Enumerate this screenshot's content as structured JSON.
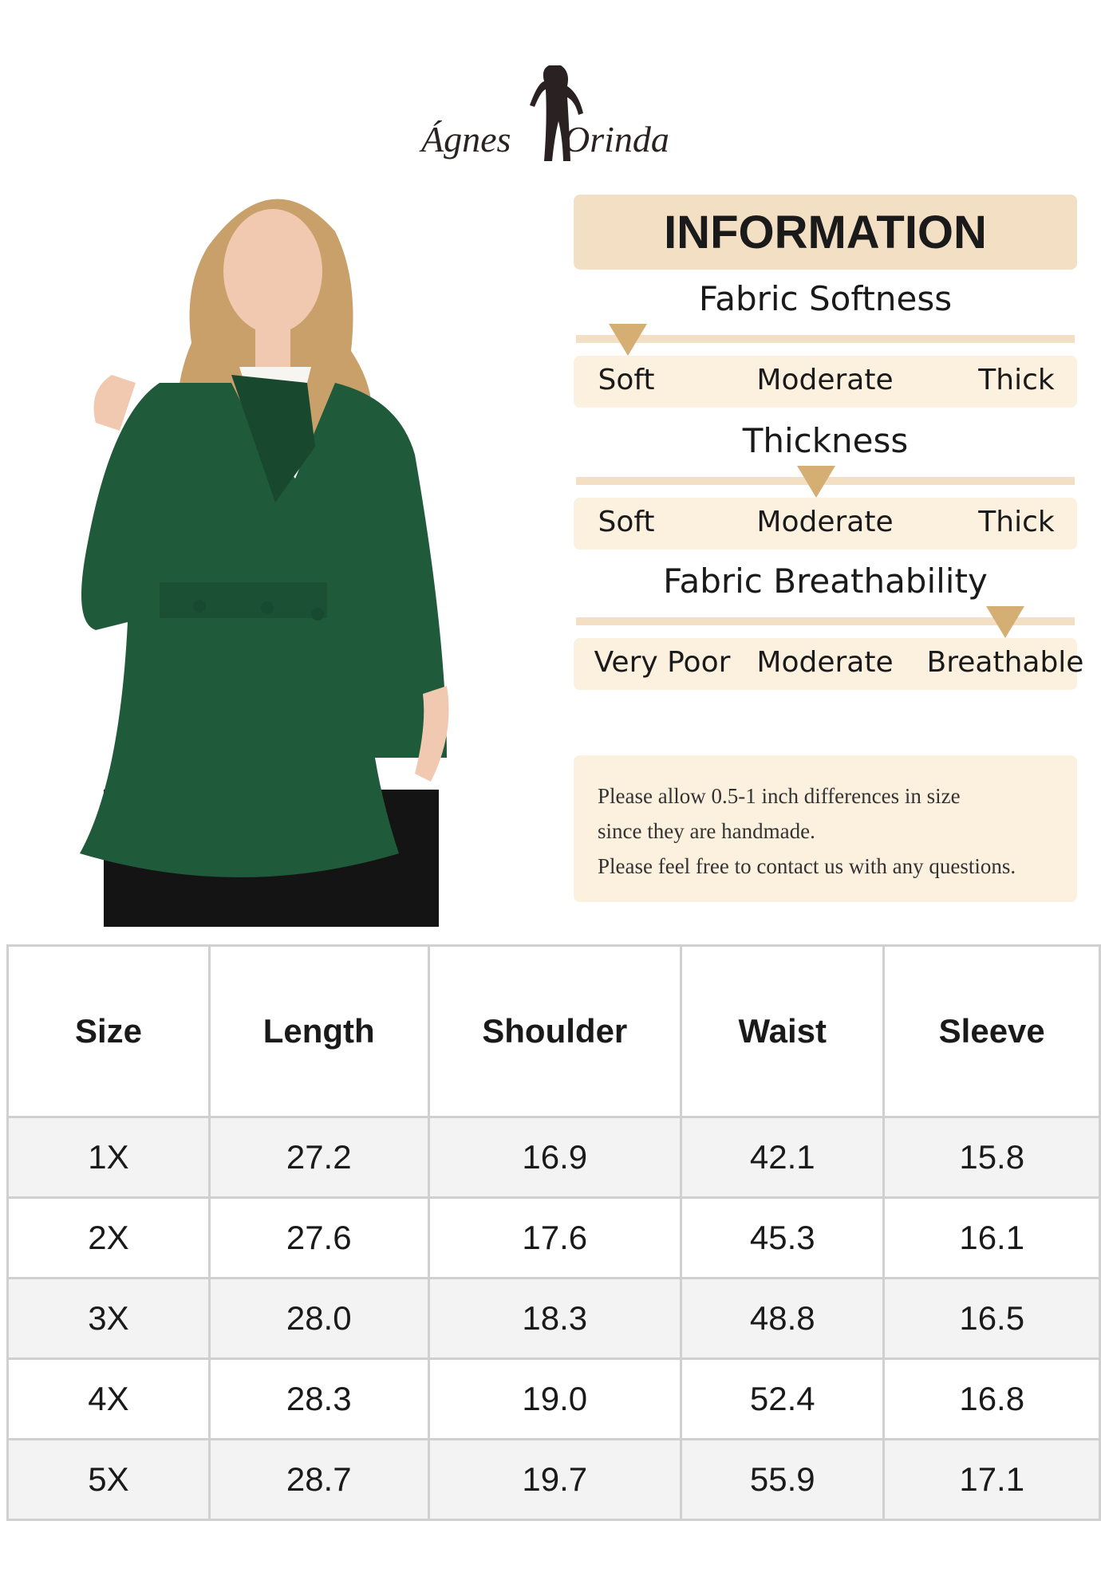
{
  "brand": {
    "left": "Ágnes",
    "right": "Orinda"
  },
  "info": {
    "title": "INFORMATION",
    "scales": [
      {
        "title": "Fabric Softness",
        "labels": [
          "Soft",
          "Moderate",
          "Thick"
        ]
      },
      {
        "title": "Thickness",
        "labels": [
          "Soft",
          "Moderate",
          "Thick"
        ]
      },
      {
        "title": "Fabric Breathability",
        "labels": [
          "Very Poor",
          "Moderate",
          "Breathable"
        ]
      }
    ],
    "notes": [
      "Please allow 0.5-1 inch differences in size",
      "since they are handmade.",
      "Please feel free to contact us with any questions."
    ]
  },
  "table": {
    "header": [
      "Size",
      "Length",
      "Shoulder",
      "Waist",
      "Sleeve"
    ],
    "rows": [
      [
        "1X",
        "27.2",
        "16.9",
        "42.1",
        "15.8"
      ],
      [
        "2X",
        "27.6",
        "17.6",
        "45.3",
        "16.1"
      ],
      [
        "3X",
        "28.0",
        "18.3",
        "48.8",
        "16.5"
      ],
      [
        "4X",
        "28.3",
        "19.0",
        "52.4",
        "16.8"
      ],
      [
        "5X",
        "28.7",
        "19.7",
        "55.9",
        "17.1"
      ]
    ]
  }
}
